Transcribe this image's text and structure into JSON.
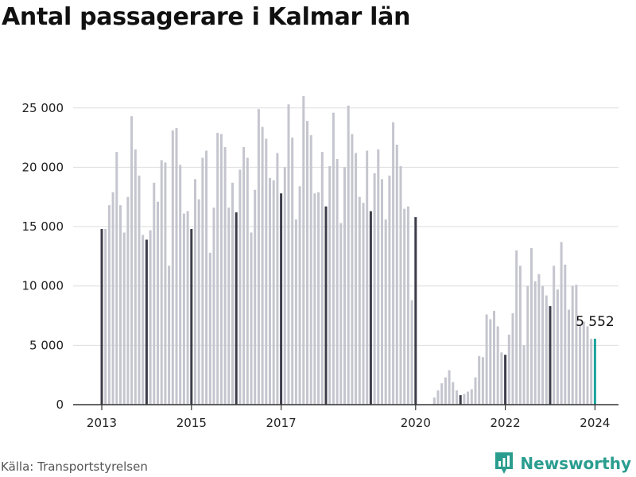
{
  "title": "Antal passagerare i Kalmar län",
  "source": "Källa: Transportstyrelsen",
  "brand": {
    "name": "Newsworthy",
    "icon": "newsworthy-logo-icon",
    "color": "#2a9d8f"
  },
  "chart_data": {
    "type": "bar",
    "title": "Antal passagerare i Kalmar län",
    "xlabel": "",
    "ylabel": "",
    "ylim": [
      0,
      27000
    ],
    "yticks": [
      0,
      5000,
      10000,
      15000,
      20000,
      25000
    ],
    "ytick_labels": [
      "0",
      "5 000",
      "10 000",
      "15 000",
      "20 000",
      "25 000"
    ],
    "xtick_labels": [
      {
        "label": "2013",
        "index": 0
      },
      {
        "label": "2015",
        "index": 24
      },
      {
        "label": "2017",
        "index": 48
      },
      {
        "label": "2020",
        "index": 84
      },
      {
        "label": "2022",
        "index": 108
      },
      {
        "label": "2024",
        "index": 132
      }
    ],
    "grid": true,
    "colors": {
      "month": "#c5c5cf",
      "january": "#3c3c4a",
      "latest": "#1aa39a",
      "grid": "#dddddd"
    },
    "start": "2013-01",
    "values": [
      14800,
      14800,
      16800,
      17900,
      21300,
      16800,
      14500,
      17500,
      24300,
      21500,
      19300,
      14300,
      13900,
      14700,
      18700,
      17100,
      20600,
      20400,
      11700,
      23100,
      23300,
      20200,
      16100,
      16300,
      14800,
      19000,
      17300,
      20800,
      21400,
      12800,
      16600,
      22900,
      22800,
      21700,
      16600,
      18700,
      16200,
      19800,
      21700,
      20800,
      14500,
      18100,
      24900,
      23400,
      22400,
      19100,
      18900,
      21200,
      17800,
      20000,
      25300,
      22500,
      15600,
      18400,
      26000,
      23900,
      22700,
      17800,
      17900,
      21300,
      16700,
      20100,
      24600,
      20700,
      15300,
      20000,
      25200,
      22800,
      21200,
      17500,
      17000,
      21400,
      16300,
      19500,
      21500,
      19000,
      15600,
      19300,
      23800,
      21900,
      20100,
      16500,
      16700,
      8800,
      15800,
      0,
      0,
      0,
      0,
      600,
      1200,
      1800,
      2300,
      2900,
      1900,
      1200,
      800,
      900,
      1100,
      1300,
      2300,
      4100,
      4000,
      7600,
      7200,
      7900,
      6600,
      4400,
      4200,
      5900,
      7700,
      13000,
      11700,
      5000,
      10000,
      13200,
      10400,
      11000,
      10000,
      9200,
      8300,
      11700,
      9700,
      13700,
      11800,
      8000,
      10000,
      10100,
      6700,
      7000,
      6600,
      5552,
      5552
    ],
    "annotations": [
      {
        "index": 132,
        "text": "5 552"
      }
    ]
  }
}
